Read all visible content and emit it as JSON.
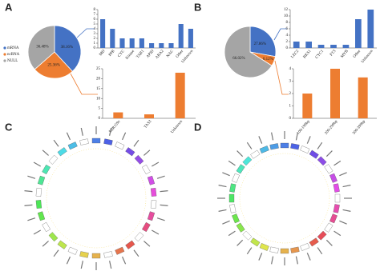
{
  "panels": [
    "A",
    "B",
    "C",
    "D"
  ],
  "chart_data": [
    {
      "type": "pie",
      "categories": [
        "mRNA",
        "ncRNA",
        "NULL"
      ],
      "values": [
        38.16,
        25.36,
        36.48
      ],
      "value_labels": [
        "38.16%",
        "25.36%",
        "36.48%"
      ],
      "colors": [
        "#4472c4",
        "#ed7d31",
        "#a5a5a5"
      ],
      "legend": true
    },
    {
      "type": "bar",
      "categories": [
        "MD",
        "PPR",
        "CYC",
        "Kinase",
        "TAR1",
        "APID",
        "ABA2",
        "NAC",
        "Other",
        "Unknown"
      ],
      "values": [
        6,
        4,
        2,
        2,
        2,
        1,
        1,
        1,
        5,
        4
      ],
      "color": "#4472c4",
      "ylim": [
        0,
        8
      ],
      "yticks": [
        0,
        1,
        2,
        3,
        4,
        5,
        6,
        7,
        8
      ]
    },
    {
      "type": "bar",
      "categories": [
        "MIR159c",
        "TAS3",
        "Unknown"
      ],
      "values": [
        3,
        2,
        23
      ],
      "color": "#ed7d31",
      "ylim": [
        0,
        25
      ],
      "yticks": [
        0,
        5,
        10,
        15,
        20,
        25
      ]
    },
    {
      "type": "pie",
      "categories": [
        "mRNA",
        "ncRNA",
        "NULL"
      ],
      "values": [
        27.86,
        6.12,
        66.02
      ],
      "value_labels": [
        "27.86%",
        "6.12%",
        "66.02%"
      ],
      "colors": [
        "#4472c4",
        "#ed7d31",
        "#a5a5a5"
      ],
      "legend": false
    },
    {
      "type": "bar",
      "categories": [
        "LEC2",
        "RKS1",
        "CYC1",
        "FT3",
        "MYB",
        "Other",
        "Unknown"
      ],
      "values": [
        2,
        2,
        1,
        1,
        1,
        9,
        12
      ],
      "color": "#4472c4",
      "ylim": [
        0,
        12
      ],
      "yticks": [
        0,
        2,
        4,
        6,
        8,
        10,
        12
      ]
    },
    {
      "type": "bar",
      "categories": [
        "100-199bp",
        "200-299bp",
        "300-399bp"
      ],
      "values": [
        2,
        4,
        3.3
      ],
      "color": "#ed7d31",
      "ylim": [
        0,
        4
      ],
      "yticks": [
        0,
        1,
        2,
        3,
        4
      ]
    }
  ]
}
